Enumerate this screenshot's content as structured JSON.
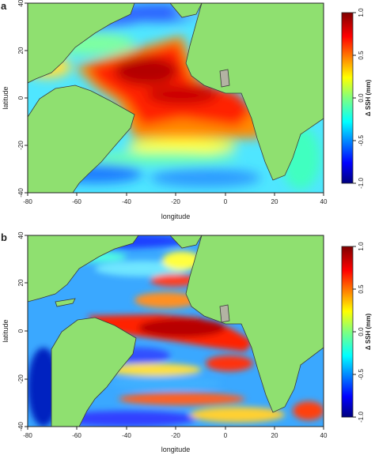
{
  "panels": [
    {
      "letter": "a",
      "xlabel": "longitude",
      "ylabel": "latitude",
      "x_ticks": [
        "-80",
        "-60",
        "-40",
        "-20",
        "0",
        "20",
        "40"
      ],
      "y_ticks": [
        "40",
        "20",
        "0",
        "-20",
        "-40"
      ],
      "colorbar_label": "Δ SSH (mm)",
      "colorbar_ticks": [
        "1.0",
        "0.5",
        "0.0",
        "-0.5",
        "-1.0"
      ]
    },
    {
      "letter": "b",
      "xlabel": "longitude",
      "ylabel": "latitude",
      "x_ticks": [
        "-80",
        "-60",
        "-40",
        "-20",
        "0",
        "20",
        "40"
      ],
      "y_ticks": [
        "40",
        "20",
        "0",
        "-20",
        "-40"
      ],
      "colorbar_label": "Δ SSH (mm)",
      "colorbar_ticks": [
        "1.0",
        "0.5",
        "0.0",
        "-0.5",
        "-1.0"
      ]
    }
  ],
  "map_extent": {
    "lon": [
      -80,
      40
    ],
    "lat": [
      -40,
      40
    ]
  },
  "colorbar_range": [
    -1.0,
    1.0
  ],
  "colors": {
    "land": "#8fe070",
    "highlight_country": "#b3b3a3",
    "scale_low": "#00007f",
    "scale_mid": "#ffff00",
    "scale_high": "#7f0000"
  }
}
